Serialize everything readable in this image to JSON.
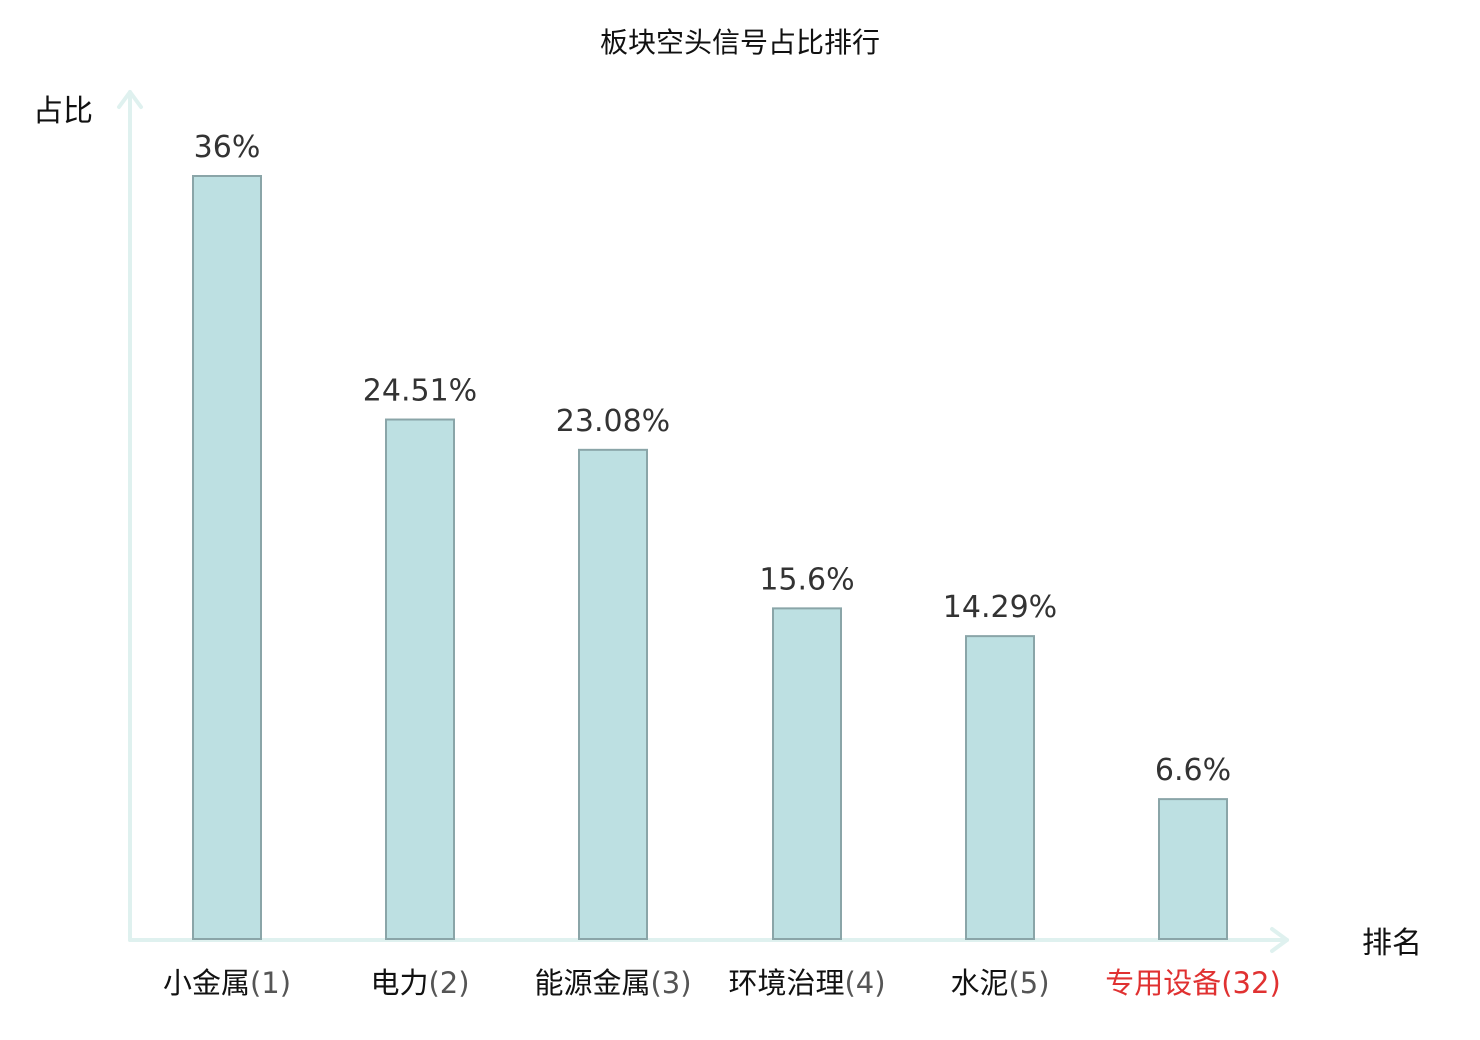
{
  "chart_data": {
    "type": "bar",
    "title": "板块空头信号占比排行",
    "ylabel": "占比",
    "xlabel": "排名",
    "ylim": [
      0,
      36
    ],
    "grid": false,
    "categories": [
      {
        "name": "小金属",
        "rank": "(1)",
        "highlight": false
      },
      {
        "name": "电力",
        "rank": "(2)",
        "highlight": false
      },
      {
        "name": "能源金属",
        "rank": "(3)",
        "highlight": false
      },
      {
        "name": "环境治理",
        "rank": "(4)",
        "highlight": false
      },
      {
        "name": "水泥",
        "rank": "(5)",
        "highlight": false
      },
      {
        "name": "专用设备",
        "rank": "(32)",
        "highlight": true
      }
    ],
    "values": [
      36,
      24.51,
      23.08,
      15.6,
      14.29,
      6.6
    ],
    "value_labels": [
      "36%",
      "24.51%",
      "23.08%",
      "15.6%",
      "14.29%",
      "6.6%"
    ],
    "colors": {
      "bar_fill": "#bde0e2",
      "bar_stroke": "#8aa5a8",
      "axis": "#dff1ef",
      "label_text": "#111111",
      "rank_text": "#555555",
      "highlight_text": "#e03131"
    }
  }
}
